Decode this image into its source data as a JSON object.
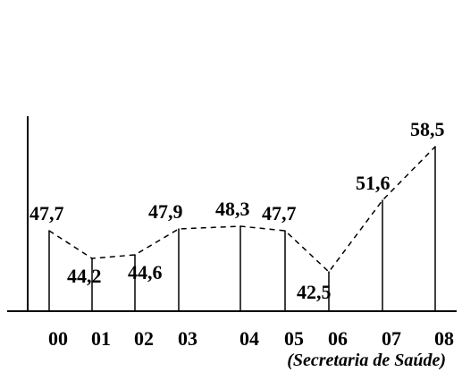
{
  "chart_data": {
    "type": "line",
    "categories": [
      "00",
      "01",
      "02",
      "03",
      "04",
      "05",
      "06",
      "07",
      "08"
    ],
    "values": [
      47.7,
      44.2,
      44.6,
      47.9,
      48.3,
      47.7,
      42.5,
      51.6,
      58.5
    ],
    "value_labels": [
      "47,7",
      "44,2",
      "44,6",
      "47,9",
      "48,3",
      "47,7",
      "42,5",
      "51,6",
      "58,5"
    ],
    "title": "",
    "xlabel": "",
    "ylabel": "",
    "line_style": "dashed",
    "drop_lines": true,
    "grid": false,
    "note": "(Secretaria de Saúde)"
  }
}
